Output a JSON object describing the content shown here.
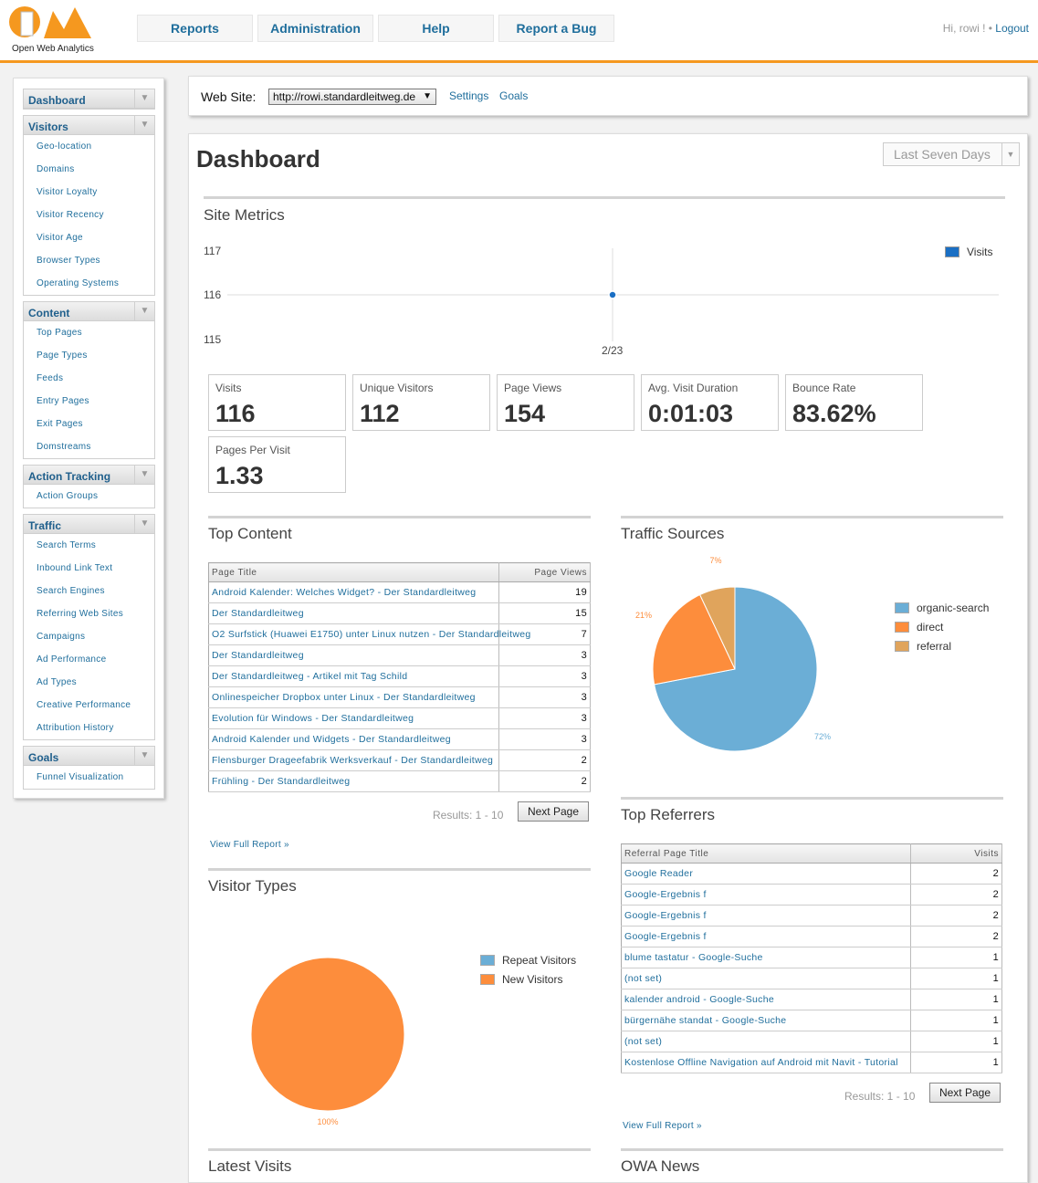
{
  "header": {
    "logo_text": "Open Web Analytics",
    "nav": [
      "Reports",
      "Administration",
      "Help",
      "Report a Bug"
    ],
    "greeting": "Hi, rowi ! •",
    "logout": "Logout"
  },
  "colors": {
    "accent": "#f5981f",
    "link": "#1f6e9c",
    "series_blue": "#6baed6",
    "series_orange": "#fd8d3c",
    "series_tan": "#e0a45c"
  },
  "sidebar": [
    {
      "title": "Dashboard",
      "items": []
    },
    {
      "title": "Visitors",
      "items": [
        "Geo-location",
        "Domains",
        "Visitor Loyalty",
        "Visitor Recency",
        "Visitor Age",
        "Browser Types",
        "Operating Systems"
      ]
    },
    {
      "title": "Content",
      "items": [
        "Top Pages",
        "Page Types",
        "Feeds",
        "Entry Pages",
        "Exit Pages",
        "Domstreams"
      ]
    },
    {
      "title": "Action Tracking",
      "items": [
        "Action Groups"
      ]
    },
    {
      "title": "Traffic",
      "items": [
        "Search Terms",
        "Inbound Link Text",
        "Search Engines",
        "Referring Web Sites",
        "Campaigns",
        "Ad Performance",
        "Ad Types",
        "Creative Performance",
        "Attribution History"
      ]
    },
    {
      "title": "Goals",
      "items": [
        "Funnel Visualization"
      ]
    }
  ],
  "sitebar": {
    "label": "Web Site:",
    "selected_site": "http://rowi.standardleitweg.de",
    "settings": "Settings",
    "goals": "Goals"
  },
  "page": {
    "title": "Dashboard",
    "period": "Last Seven Days"
  },
  "site_metrics": {
    "title": "Site Metrics",
    "chart_data": {
      "type": "line",
      "x": [
        "2/23"
      ],
      "series": [
        {
          "name": "Visits",
          "values": [
            116
          ]
        }
      ],
      "ylim": [
        115,
        117
      ],
      "yticks": [
        "117",
        "116",
        "115"
      ],
      "legend": "top-right"
    },
    "metrics": [
      {
        "label": "Visits",
        "value": "116"
      },
      {
        "label": "Unique Visitors",
        "value": "112"
      },
      {
        "label": "Page Views",
        "value": "154"
      },
      {
        "label": "Avg. Visit Duration",
        "value": "0:01:03"
      },
      {
        "label": "Bounce Rate",
        "value": "83.62%"
      },
      {
        "label": "Pages Per Visit",
        "value": "1.33"
      }
    ]
  },
  "top_content": {
    "title": "Top Content",
    "columns": [
      "Page Title",
      "Page Views"
    ],
    "rows": [
      [
        "Android Kalender: Welches Widget? - Der Standardleitweg",
        "19"
      ],
      [
        "Der Standardleitweg",
        "15"
      ],
      [
        "O2 Surfstick (Huawei E1750) unter Linux nutzen - Der Standardleitweg",
        "7"
      ],
      [
        "Der Standardleitweg",
        "3"
      ],
      [
        "Der Standardleitweg - Artikel mit Tag Schild",
        "3"
      ],
      [
        "Onlinespeicher Dropbox unter Linux - Der Standardleitweg",
        "3"
      ],
      [
        "Evolution für Windows - Der Standardleitweg",
        "3"
      ],
      [
        "Android Kalender und Widgets - Der Standardleitweg",
        "3"
      ],
      [
        "Flensburger Drageefabrik Werksverkauf - Der Standardleitweg",
        "2"
      ],
      [
        "Frühling - Der Standardleitweg",
        "2"
      ]
    ],
    "results": "Results: 1 - 10",
    "next": "Next Page",
    "full_report": "View Full Report »"
  },
  "traffic_sources": {
    "title": "Traffic Sources",
    "chart_data": {
      "type": "pie",
      "categories": [
        "organic-search",
        "direct",
        "referral"
      ],
      "values": [
        72,
        21,
        7
      ],
      "labels": [
        "72%",
        "21%",
        "7%"
      ],
      "colors": [
        "#6baed6",
        "#fd8d3c",
        "#e0a45c"
      ],
      "legend": "right"
    }
  },
  "top_referrers": {
    "title": "Top Referrers",
    "columns": [
      "Referral Page Title",
      "Visits"
    ],
    "rows": [
      [
        "Google Reader",
        "2"
      ],
      [
        "Google-Ergebnis f",
        "2"
      ],
      [
        "Google-Ergebnis f",
        "2"
      ],
      [
        "Google-Ergebnis f",
        "2"
      ],
      [
        "blume tastatur - Google-Suche",
        "1"
      ],
      [
        "(not set)",
        "1"
      ],
      [
        "kalender android - Google-Suche",
        "1"
      ],
      [
        "bürgernähe standat - Google-Suche",
        "1"
      ],
      [
        "(not set)",
        "1"
      ],
      [
        "Kostenlose Offline Navigation auf Android mit Navit - Tutorial",
        "1"
      ]
    ],
    "results": "Results: 1 - 10",
    "next": "Next Page",
    "full_report": "View Full Report »"
  },
  "visitor_types": {
    "title": "Visitor Types",
    "chart_data": {
      "type": "pie",
      "categories": [
        "Repeat Visitors",
        "New Visitors"
      ],
      "values": [
        0,
        100
      ],
      "labels": [
        "",
        "100%"
      ],
      "colors": [
        "#6baed6",
        "#fd8d3c"
      ],
      "legend": "right"
    }
  },
  "latest_visits": {
    "title": "Latest Visits"
  },
  "owa_news": {
    "title": "OWA News"
  }
}
